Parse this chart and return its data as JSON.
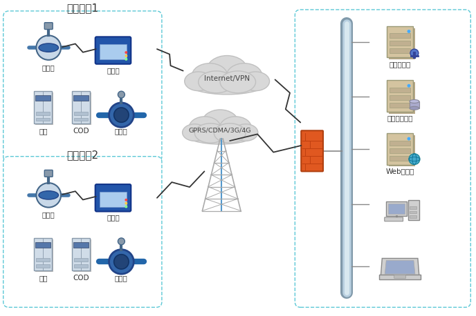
{
  "bg_color": "#ffffff",
  "company1_label": "排污企业1",
  "company2_label": "排污企业2",
  "server_labels": [
    "通讯服务器",
    "数据库服务器",
    "Web服务器"
  ],
  "device_labels_1": [
    "电控阀",
    "数采仪",
    "氨氮",
    "COD",
    "流量计"
  ],
  "device_labels_2": [
    "电控阀",
    "数采仪",
    "氨氮",
    "COD",
    "流量计"
  ],
  "cloud_text1": "Internet/VPN",
  "cloud_text2": "GPRS/CDMA/3G/4G",
  "box_dash_color": "#5bc8d6",
  "lightning_color": "#333333",
  "backbone_color_outer": "#7a9ab5",
  "backbone_color_inner": "#b8cfe0",
  "firewall_color": "#e05820",
  "firewall_edge": "#b04010",
  "line_color": "#888888",
  "cloud_color": "#c0c0c0",
  "cloud_fill": "#d8d8d8",
  "server_fill": "#d4c4a0",
  "server_edge": "#999977",
  "cabinet_fill": "#d0dce8",
  "cabinet_edge": "#8899aa"
}
